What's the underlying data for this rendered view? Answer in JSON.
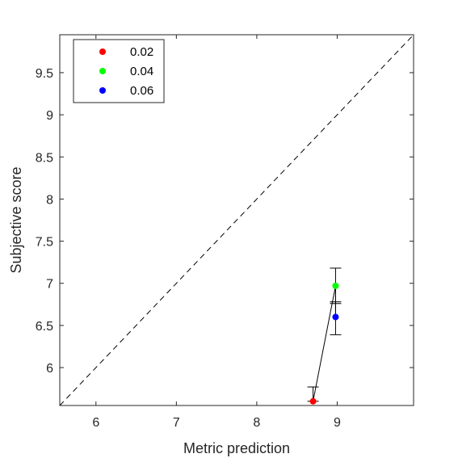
{
  "chart_data": {
    "type": "scatter",
    "xlabel": "Metric prediction",
    "ylabel": "Subjective score",
    "xlim": [
      5.55,
      9.95
    ],
    "ylim": [
      5.55,
      9.95
    ],
    "x_ticks": [
      6,
      7,
      8,
      9
    ],
    "y_ticks": [
      6,
      6.5,
      7,
      7.5,
      8,
      8.5,
      9,
      9.5
    ],
    "x_tick_labels": [
      "6",
      "7",
      "8",
      "9"
    ],
    "y_tick_labels": [
      "6",
      "6.5",
      "7",
      "7.5",
      "8",
      "8.5",
      "9",
      "9.5"
    ],
    "grid": false,
    "legend_position": "top-left",
    "reference_line": "y=x (dashed)",
    "connect_points": true,
    "series": [
      {
        "name": "0.02",
        "color": "#ff0000",
        "x": 8.7,
        "y": 5.6,
        "err_low": 5.6,
        "err_high": 5.77
      },
      {
        "name": "0.04",
        "color": "#00ff00",
        "x": 8.98,
        "y": 6.97,
        "err_low": 6.76,
        "err_high": 7.18
      },
      {
        "name": "0.06",
        "color": "#0000ff",
        "x": 8.98,
        "y": 6.6,
        "err_low": 6.39,
        "err_high": 6.78
      }
    ]
  }
}
